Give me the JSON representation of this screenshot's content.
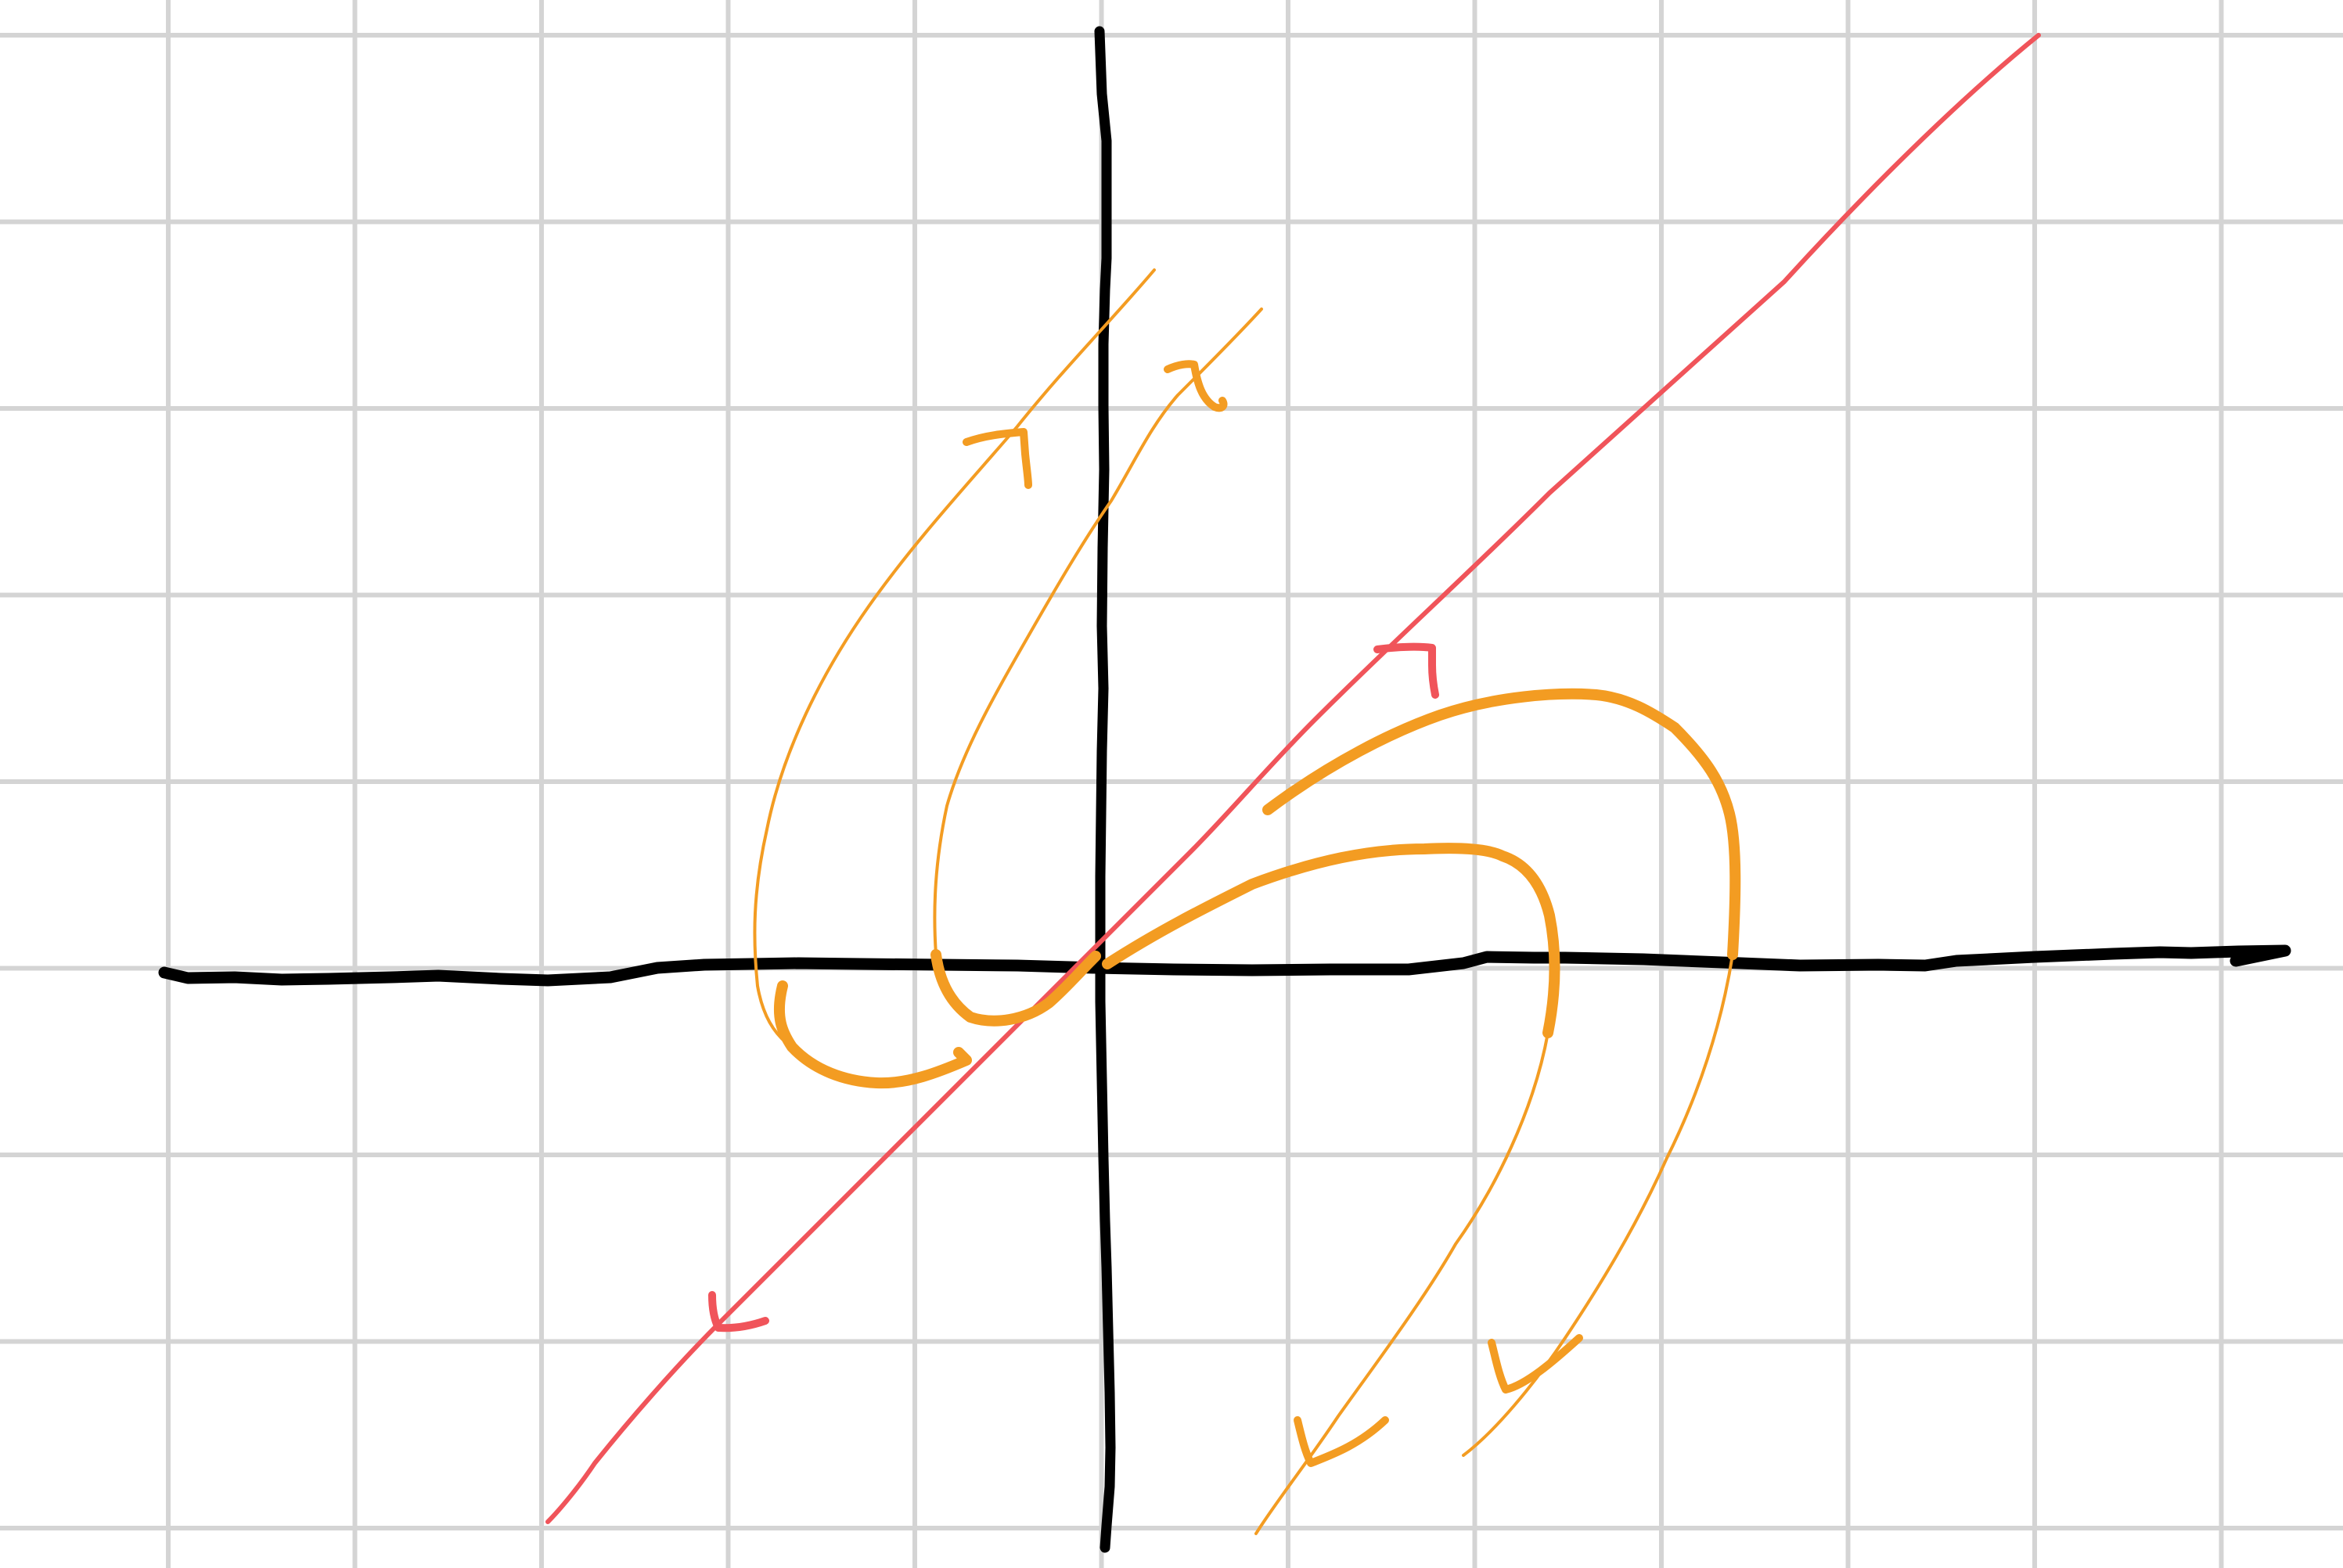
{
  "diagram": {
    "kind": "hand-drawn phase portrait (saddle/spiral flow sketch)",
    "colors": {
      "background": "#ffffff",
      "grid": "#d4d4d4",
      "axes": "#000000",
      "invariant_line": "#f0545a",
      "trajectories": "#f39c22"
    },
    "elements": [
      "grid-paper",
      "horizontal-axis",
      "vertical-axis",
      "red-invariant-line",
      "red-arrow-outgoing",
      "red-arrow-incoming",
      "orange-trajectory-upper-left-outer",
      "orange-trajectory-upper-left-inner",
      "orange-trajectory-lower-right-inner",
      "orange-trajectory-lower-right-outer"
    ],
    "text_labels": []
  }
}
